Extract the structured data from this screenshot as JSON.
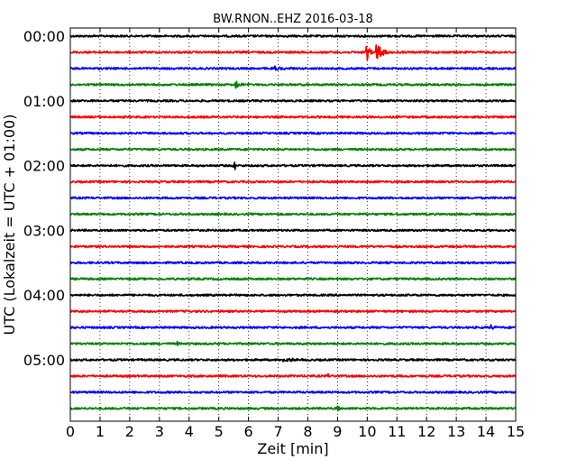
{
  "chart_data": {
    "type": "line",
    "title": "BW.RNON..EHZ 2016-03-18",
    "xlabel": "Zeit  [min]",
    "ylabel": "UTC (Lokalzeit = UTC + 01:00)",
    "xlim": [
      0,
      15
    ],
    "x_ticks": [
      0,
      1,
      2,
      3,
      4,
      5,
      6,
      7,
      8,
      9,
      10,
      11,
      12,
      13,
      14,
      15
    ],
    "x_tick_labels": [
      "0",
      "1",
      "2",
      "3",
      "4",
      "5",
      "6",
      "7",
      "8",
      "9",
      "10",
      "11",
      "12",
      "13",
      "14",
      "15"
    ],
    "y_tick_labels": [
      "00:00",
      "01:00",
      "02:00",
      "03:00",
      "04:00",
      "05:00"
    ],
    "y_tick_rows": [
      0,
      4,
      8,
      12,
      16,
      20
    ],
    "grid": "vertical-dotted",
    "trace_colors": [
      "#000000",
      "#ff0000",
      "#0000ff",
      "#008000"
    ],
    "traces": [
      {
        "start": "00:00",
        "color": "#000000",
        "events": []
      },
      {
        "start": "00:15",
        "color": "#ff0000",
        "events": [
          {
            "t": 10.0,
            "amp": 1.0,
            "dur": 0.3
          },
          {
            "t": 10.35,
            "amp": 1.1,
            "dur": 0.4
          }
        ]
      },
      {
        "start": "00:30",
        "color": "#0000ff",
        "events": [
          {
            "t": 6.9,
            "amp": 0.35,
            "dur": 0.6
          }
        ]
      },
      {
        "start": "00:45",
        "color": "#008000",
        "events": [
          {
            "t": 5.6,
            "amp": 0.45,
            "dur": 0.5
          }
        ]
      },
      {
        "start": "01:00",
        "color": "#000000",
        "events": []
      },
      {
        "start": "01:15",
        "color": "#ff0000",
        "events": []
      },
      {
        "start": "01:30",
        "color": "#0000ff",
        "events": []
      },
      {
        "start": "01:45",
        "color": "#008000",
        "events": []
      },
      {
        "start": "02:00",
        "color": "#000000",
        "events": [
          {
            "t": 5.55,
            "amp": 0.6,
            "dur": 0.1
          }
        ]
      },
      {
        "start": "02:15",
        "color": "#ff0000",
        "events": []
      },
      {
        "start": "02:30",
        "color": "#0000ff",
        "events": []
      },
      {
        "start": "02:45",
        "color": "#008000",
        "events": []
      },
      {
        "start": "03:00",
        "color": "#000000",
        "events": []
      },
      {
        "start": "03:15",
        "color": "#ff0000",
        "events": []
      },
      {
        "start": "03:30",
        "color": "#0000ff",
        "events": []
      },
      {
        "start": "03:45",
        "color": "#008000",
        "events": []
      },
      {
        "start": "04:00",
        "color": "#000000",
        "events": []
      },
      {
        "start": "04:15",
        "color": "#ff0000",
        "events": []
      },
      {
        "start": "04:30",
        "color": "#0000ff",
        "events": [
          {
            "t": 14.2,
            "amp": 0.35,
            "dur": 0.15
          }
        ]
      },
      {
        "start": "04:45",
        "color": "#008000",
        "events": [
          {
            "t": 3.6,
            "amp": 0.3,
            "dur": 0.1
          }
        ]
      },
      {
        "start": "05:00",
        "color": "#000000",
        "events": [
          {
            "t": 7.2,
            "amp": 0.3,
            "dur": 0.8
          }
        ]
      },
      {
        "start": "05:15",
        "color": "#ff0000",
        "events": [
          {
            "t": 8.7,
            "amp": 0.3,
            "dur": 0.1
          }
        ]
      },
      {
        "start": "05:30",
        "color": "#0000ff",
        "events": []
      },
      {
        "start": "05:45",
        "color": "#008000",
        "events": [
          {
            "t": 9.0,
            "amp": 0.35,
            "dur": 0.1
          }
        ]
      }
    ]
  }
}
